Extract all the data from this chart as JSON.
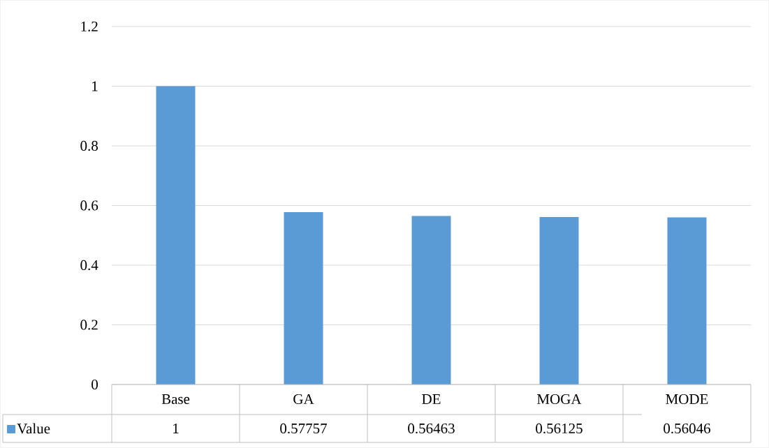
{
  "chart_data": {
    "type": "bar",
    "categories": [
      "Base",
      "GA",
      "DE",
      "MOGA",
      "MODE"
    ],
    "series": [
      {
        "name": "Value",
        "color": "#5b9bd5",
        "values": [
          1,
          0.57757,
          0.56463,
          0.56125,
          0.56046
        ]
      }
    ],
    "ylim": [
      0,
      1.2
    ],
    "yticks": [
      0,
      0.2,
      0.4,
      0.6,
      0.8,
      1,
      1.2
    ],
    "grid": "y",
    "data_labels": true,
    "legend": "bottom"
  }
}
